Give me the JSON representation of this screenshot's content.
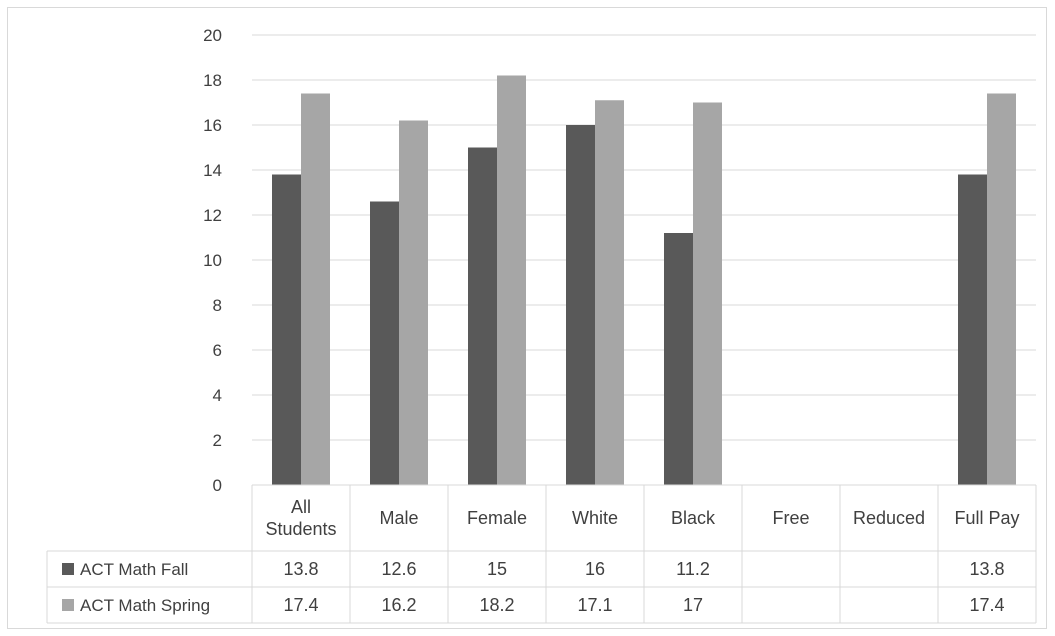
{
  "chart_data": {
    "type": "bar",
    "title": "",
    "xlabel": "",
    "ylabel": "",
    "ylim": [
      0,
      20
    ],
    "ytick_step": 2,
    "grid": true,
    "legend_placement": "data-table",
    "categories": [
      {
        "lines": [
          "All",
          "Students"
        ]
      },
      {
        "lines": [
          "Male"
        ]
      },
      {
        "lines": [
          "Female"
        ]
      },
      {
        "lines": [
          "White"
        ]
      },
      {
        "lines": [
          "Black"
        ]
      },
      {
        "lines": [
          "Free"
        ]
      },
      {
        "lines": [
          "Reduced"
        ]
      },
      {
        "lines": [
          "Full Pay"
        ]
      }
    ],
    "series": [
      {
        "name": "ACT Math Fall",
        "color": "#595959",
        "values": [
          13.8,
          12.6,
          15,
          16,
          11.2,
          null,
          null,
          13.8
        ],
        "labels": [
          "13.8",
          "12.6",
          "15",
          "16",
          "11.2",
          "",
          "",
          "13.8"
        ]
      },
      {
        "name": "ACT Math Spring",
        "color": "#a6a6a6",
        "values": [
          17.4,
          16.2,
          18.2,
          17.1,
          17,
          null,
          null,
          17.4
        ],
        "labels": [
          "17.4",
          "16.2",
          "18.2",
          "17.1",
          "17",
          "",
          "",
          "17.4"
        ]
      }
    ]
  }
}
